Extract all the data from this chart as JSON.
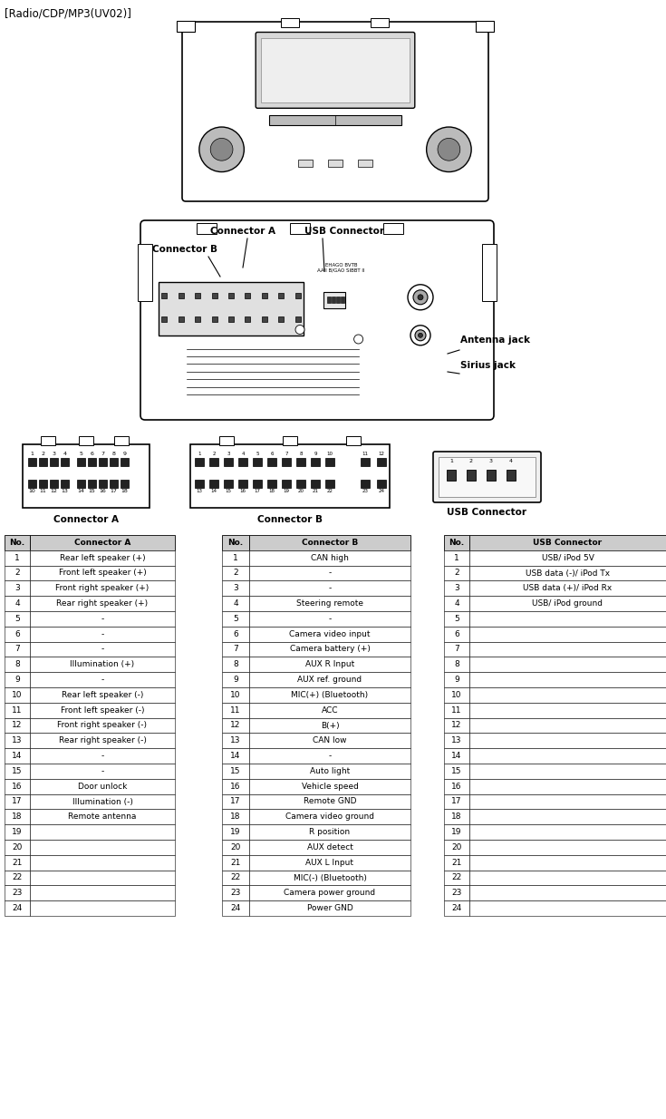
{
  "title": "[Radio/CDP/MP3(UV02)]",
  "connector_a_headers": [
    "No.",
    "Connector A"
  ],
  "connector_b_headers": [
    "No.",
    "Connector B"
  ],
  "usb_headers": [
    "No.",
    "USB Connector"
  ],
  "connector_a": [
    [
      1,
      "Rear left speaker (+)"
    ],
    [
      2,
      "Front left speaker (+)"
    ],
    [
      3,
      "Front right speaker (+)"
    ],
    [
      4,
      "Rear right speaker (+)"
    ],
    [
      5,
      "-"
    ],
    [
      6,
      "-"
    ],
    [
      7,
      "-"
    ],
    [
      8,
      "Illumination (+)"
    ],
    [
      9,
      "-"
    ],
    [
      10,
      "Rear left speaker (-)"
    ],
    [
      11,
      "Front left speaker (-)"
    ],
    [
      12,
      "Front right speaker (-)"
    ],
    [
      13,
      "Rear right speaker (-)"
    ],
    [
      14,
      "-"
    ],
    [
      15,
      "-"
    ],
    [
      16,
      "Door unlock"
    ],
    [
      17,
      "Illumination (-)"
    ],
    [
      18,
      "Remote antenna"
    ],
    [
      19,
      ""
    ],
    [
      20,
      ""
    ],
    [
      21,
      ""
    ],
    [
      22,
      ""
    ],
    [
      23,
      ""
    ],
    [
      24,
      ""
    ]
  ],
  "connector_b": [
    [
      1,
      "CAN high"
    ],
    [
      2,
      "-"
    ],
    [
      3,
      "-"
    ],
    [
      4,
      "Steering remote"
    ],
    [
      5,
      "-"
    ],
    [
      6,
      "Camera video input"
    ],
    [
      7,
      "Camera battery (+)"
    ],
    [
      8,
      "AUX R Input"
    ],
    [
      9,
      "AUX ref. ground"
    ],
    [
      10,
      "MIC(+) (Bluetooth)"
    ],
    [
      11,
      "ACC"
    ],
    [
      12,
      "B(+)"
    ],
    [
      13,
      "CAN low"
    ],
    [
      14,
      "-"
    ],
    [
      15,
      "Auto light"
    ],
    [
      16,
      "Vehicle speed"
    ],
    [
      17,
      "Remote GND"
    ],
    [
      18,
      "Camera video ground"
    ],
    [
      19,
      "R position"
    ],
    [
      20,
      "AUX detect"
    ],
    [
      21,
      "AUX L Input"
    ],
    [
      22,
      "MIC(-) (Bluetooth)"
    ],
    [
      23,
      "Camera power ground"
    ],
    [
      24,
      "Power GND"
    ]
  ],
  "usb_connector": [
    [
      1,
      "USB/ iPod 5V"
    ],
    [
      2,
      "USB data (-)/ iPod Tx"
    ],
    [
      3,
      "USB data (+)/ iPod Rx"
    ],
    [
      4,
      "USB/ iPod ground"
    ],
    [
      5,
      ""
    ],
    [
      6,
      ""
    ],
    [
      7,
      ""
    ],
    [
      8,
      ""
    ],
    [
      9,
      ""
    ],
    [
      10,
      ""
    ],
    [
      11,
      ""
    ],
    [
      12,
      ""
    ],
    [
      13,
      ""
    ],
    [
      14,
      ""
    ],
    [
      15,
      ""
    ],
    [
      16,
      ""
    ],
    [
      17,
      ""
    ],
    [
      18,
      ""
    ],
    [
      19,
      ""
    ],
    [
      20,
      ""
    ],
    [
      21,
      ""
    ],
    [
      22,
      ""
    ],
    [
      23,
      ""
    ],
    [
      24,
      ""
    ]
  ],
  "bg_color": "#ffffff",
  "header_bg": "#cccccc",
  "line_color": "#000000",
  "text_color": "#000000",
  "font_size_title": 8.5,
  "font_size_table": 6.5,
  "font_size_label": 7.5,
  "font_size_connector_label": 7.5
}
